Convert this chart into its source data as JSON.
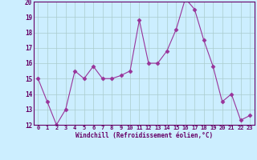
{
  "x": [
    0,
    1,
    2,
    3,
    4,
    5,
    6,
    7,
    8,
    9,
    10,
    11,
    12,
    13,
    14,
    15,
    16,
    17,
    18,
    19,
    20,
    21,
    22,
    23
  ],
  "y": [
    15.0,
    13.5,
    12.0,
    13.0,
    15.5,
    15.0,
    15.8,
    15.0,
    15.0,
    15.2,
    15.5,
    18.8,
    16.0,
    16.0,
    16.8,
    18.2,
    20.2,
    19.5,
    17.5,
    15.8,
    13.5,
    14.0,
    12.3,
    12.6
  ],
  "line_color": "#993399",
  "marker": "D",
  "marker_size": 2.5,
  "bg_color": "#cceeff",
  "grid_color": "#aacccc",
  "xlabel": "Windchill (Refroidissement éolien,°C)",
  "xlabel_color": "#660066",
  "ylim": [
    12,
    20
  ],
  "xlim": [
    -0.5,
    23.5
  ],
  "yticks": [
    12,
    13,
    14,
    15,
    16,
    17,
    18,
    19,
    20
  ],
  "xticks": [
    0,
    1,
    2,
    3,
    4,
    5,
    6,
    7,
    8,
    9,
    10,
    11,
    12,
    13,
    14,
    15,
    16,
    17,
    18,
    19,
    20,
    21,
    22,
    23
  ],
  "tick_color": "#660066",
  "axis_color": "#660066"
}
